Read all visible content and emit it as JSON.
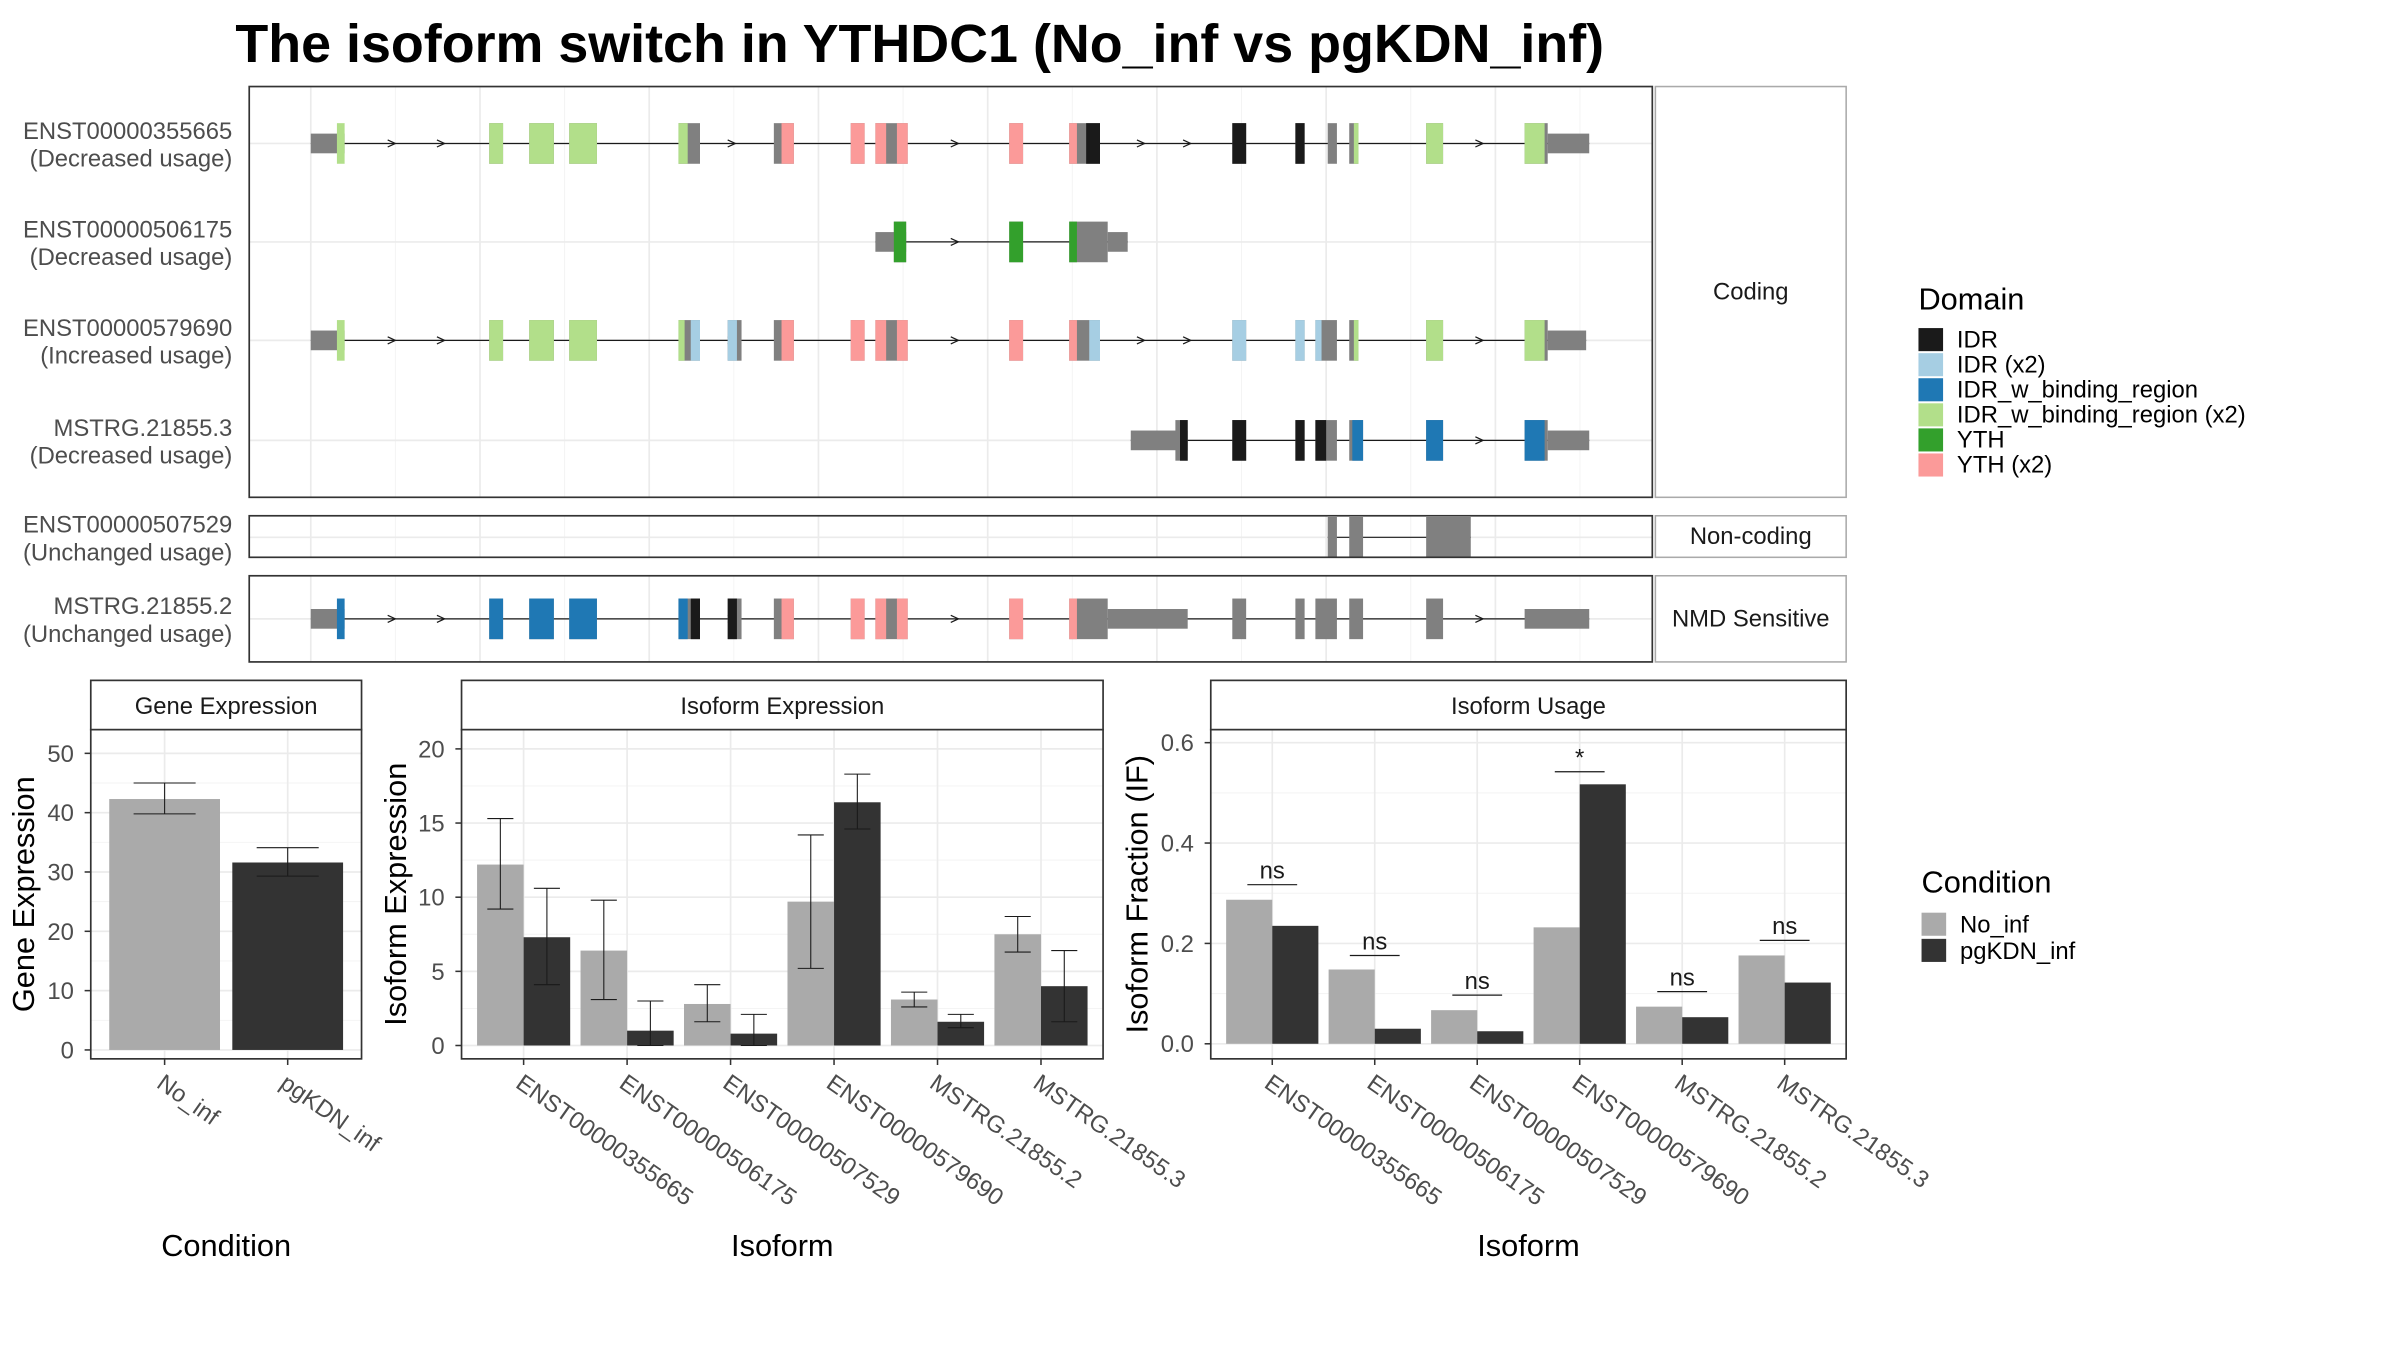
{
  "title": "The isoform switch in YTHDC1 (No_inf vs pgKDN_inf)",
  "colors": {
    "exon": "#808080",
    "panel_border": "#333333",
    "strip_border": "#aaaaaa",
    "grid": "#ebebeb",
    "No_inf": "#aaaaaa",
    "pgKDN_inf": "#333333",
    "IDR": "#1a1a1a",
    "IDR (x2)": "#a6cee3",
    "IDR_w_binding_region": "#1f78b4",
    "IDR_w_binding_region (x2)": "#b2df8a",
    "YTH": "#33a02c",
    "YTH (x2)": "#fb9a99"
  },
  "structure": {
    "facets": [
      {
        "label": "Coding",
        "tracks": [
          0,
          1,
          2,
          3
        ]
      },
      {
        "label": "Non-coding",
        "tracks": [
          4
        ]
      },
      {
        "label": "NMD Sensitive",
        "tracks": [
          5
        ]
      }
    ],
    "tracks": [
      {
        "name": "ENST00000355665",
        "usage": "(Decreased usage)",
        "line": [
          202,
          1033
        ],
        "exons": [
          [
            202,
            224,
            0.8
          ],
          [
            318,
            327,
            1.65
          ],
          [
            344,
            360,
            1.65
          ],
          [
            370,
            388,
            1.65
          ],
          [
            441,
            455,
            1.65
          ],
          [
            503,
            516,
            1.65
          ],
          [
            553,
            562,
            1.65
          ],
          [
            569,
            590,
            1.65
          ],
          [
            656,
            665,
            1.65
          ],
          [
            695,
            715,
            1.65
          ],
          [
            801,
            810,
            1.65
          ],
          [
            842,
            848,
            1.65
          ],
          [
            863,
            869,
            1.65
          ],
          [
            877,
            883,
            1.65
          ],
          [
            927,
            938,
            1.65
          ],
          [
            991,
            1006,
            1.65
          ],
          [
            1006,
            1033,
            0.8
          ]
        ],
        "domains": [
          [
            219,
            224,
            "IDR_w_binding_region (x2)"
          ],
          [
            318,
            327,
            "IDR_w_binding_region (x2)"
          ],
          [
            344,
            360,
            "IDR_w_binding_region (x2)"
          ],
          [
            370,
            388,
            "IDR_w_binding_region (x2)"
          ],
          [
            441,
            447,
            "IDR_w_binding_region (x2)"
          ],
          [
            508,
            516,
            "YTH (x2)"
          ],
          [
            553,
            562,
            "YTH (x2)"
          ],
          [
            569,
            576,
            "YTH (x2)"
          ],
          [
            583,
            590,
            "YTH (x2)"
          ],
          [
            656,
            665,
            "YTH (x2)"
          ],
          [
            695,
            700,
            "YTH (x2)"
          ],
          [
            706,
            715,
            "IDR"
          ],
          [
            801,
            810,
            "IDR"
          ],
          [
            842,
            848,
            "IDR"
          ],
          [
            880,
            883,
            "IDR_w_binding_region (x2)"
          ],
          [
            927,
            938,
            "IDR_w_binding_region (x2)"
          ],
          [
            991,
            1004,
            "IDR_w_binding_region (x2)"
          ]
        ],
        "arrows": [
          255,
          287,
          324,
          476,
          621,
          742,
          772,
          962
        ]
      },
      {
        "name": "ENST00000506175",
        "usage": "(Decreased usage)",
        "line": [
          569,
          733
        ],
        "exons": [
          [
            569,
            589,
            0.8
          ],
          [
            581,
            589,
            1.65
          ],
          [
            656,
            665,
            1.65
          ],
          [
            695,
            720,
            1.65
          ],
          [
            720,
            733,
            0.8
          ]
        ],
        "domains": [
          [
            581,
            589,
            "YTH"
          ],
          [
            656,
            665,
            "YTH"
          ],
          [
            695,
            700,
            "YTH"
          ]
        ],
        "arrows": [
          621
        ]
      },
      {
        "name": "ENST00000579690",
        "usage": "(Increased usage)",
        "line": [
          202,
          1031
        ],
        "exons": [
          [
            202,
            224,
            0.8
          ],
          [
            318,
            327,
            1.65
          ],
          [
            344,
            360,
            1.65
          ],
          [
            370,
            388,
            1.65
          ],
          [
            441,
            455,
            1.65
          ],
          [
            473,
            482,
            1.65
          ],
          [
            503,
            516,
            1.65
          ],
          [
            553,
            562,
            1.65
          ],
          [
            569,
            590,
            1.65
          ],
          [
            656,
            665,
            1.65
          ],
          [
            695,
            715,
            1.65
          ],
          [
            801,
            810,
            1.65
          ],
          [
            842,
            848,
            1.65
          ],
          [
            855,
            869,
            1.65
          ],
          [
            877,
            883,
            1.65
          ],
          [
            927,
            938,
            1.65
          ],
          [
            991,
            1006,
            1.65
          ],
          [
            1006,
            1031,
            0.8
          ]
        ],
        "domains": [
          [
            219,
            224,
            "IDR_w_binding_region (x2)"
          ],
          [
            318,
            327,
            "IDR_w_binding_region (x2)"
          ],
          [
            344,
            360,
            "IDR_w_binding_region (x2)"
          ],
          [
            370,
            388,
            "IDR_w_binding_region (x2)"
          ],
          [
            441,
            445,
            "IDR_w_binding_region (x2)"
          ],
          [
            449,
            455,
            "IDR (x2)"
          ],
          [
            473,
            479,
            "IDR (x2)"
          ],
          [
            508,
            516,
            "YTH (x2)"
          ],
          [
            553,
            562,
            "YTH (x2)"
          ],
          [
            569,
            576,
            "YTH (x2)"
          ],
          [
            583,
            590,
            "YTH (x2)"
          ],
          [
            656,
            665,
            "YTH (x2)"
          ],
          [
            695,
            700,
            "YTH (x2)"
          ],
          [
            708,
            715,
            "IDR (x2)"
          ],
          [
            801,
            810,
            "IDR (x2)"
          ],
          [
            842,
            848,
            "IDR (x2)"
          ],
          [
            855,
            859,
            "IDR (x2)"
          ],
          [
            880,
            883,
            "IDR_w_binding_region (x2)"
          ],
          [
            927,
            938,
            "IDR_w_binding_region (x2)"
          ],
          [
            991,
            1004,
            "IDR_w_binding_region (x2)"
          ]
        ],
        "arrows": [
          255,
          287,
          324,
          476,
          621,
          742,
          772,
          962
        ]
      },
      {
        "name": "MSTRG.21855.3",
        "usage": "(Decreased usage)",
        "line": [
          735,
          1033
        ],
        "exons": [
          [
            735,
            772,
            0.8
          ],
          [
            764,
            772,
            1.65
          ],
          [
            801,
            810,
            1.65
          ],
          [
            842,
            848,
            1.65
          ],
          [
            855,
            869,
            1.65
          ],
          [
            877,
            886,
            1.65
          ],
          [
            927,
            938,
            1.65
          ],
          [
            991,
            1006,
            1.65
          ],
          [
            1006,
            1033,
            0.8
          ]
        ],
        "domains": [
          [
            767,
            772,
            "IDR"
          ],
          [
            801,
            810,
            "IDR"
          ],
          [
            842,
            848,
            "IDR"
          ],
          [
            855,
            862,
            "IDR"
          ],
          [
            879,
            886,
            "IDR_w_binding_region"
          ],
          [
            927,
            938,
            "IDR_w_binding_region"
          ],
          [
            991,
            1004,
            "IDR_w_binding_region"
          ]
        ],
        "arrows": [
          962
        ]
      },
      {
        "name": "ENST00000507529",
        "usage": "(Unchanged usage)",
        "line": [
          863,
          956
        ],
        "exons": [
          [
            863,
            869,
            1.65
          ],
          [
            877,
            886,
            1.65
          ],
          [
            927,
            956,
            1.65
          ]
        ],
        "domains": [],
        "arrows": []
      },
      {
        "name": "MSTRG.21855.2",
        "usage": "(Unchanged usage)",
        "line": [
          202,
          1033
        ],
        "exons": [
          [
            202,
            224,
            0.8
          ],
          [
            318,
            327,
            1.65
          ],
          [
            344,
            360,
            1.65
          ],
          [
            370,
            388,
            1.65
          ],
          [
            441,
            455,
            1.65
          ],
          [
            473,
            482,
            1.65
          ],
          [
            503,
            516,
            1.65
          ],
          [
            553,
            562,
            1.65
          ],
          [
            569,
            590,
            1.65
          ],
          [
            656,
            665,
            1.65
          ],
          [
            695,
            720,
            1.65
          ],
          [
            720,
            772,
            0.8
          ],
          [
            801,
            810,
            1.65
          ],
          [
            842,
            848,
            1.65
          ],
          [
            855,
            869,
            1.65
          ],
          [
            877,
            886,
            1.65
          ],
          [
            927,
            938,
            1.65
          ],
          [
            991,
            1033,
            0.8
          ]
        ],
        "domains": [
          [
            219,
            224,
            "IDR_w_binding_region"
          ],
          [
            318,
            327,
            "IDR_w_binding_region"
          ],
          [
            344,
            360,
            "IDR_w_binding_region"
          ],
          [
            370,
            388,
            "IDR_w_binding_region"
          ],
          [
            441,
            447,
            "IDR_w_binding_region"
          ],
          [
            449,
            455,
            "IDR"
          ],
          [
            473,
            479,
            "IDR"
          ],
          [
            508,
            516,
            "YTH (x2)"
          ],
          [
            553,
            562,
            "YTH (x2)"
          ],
          [
            569,
            576,
            "YTH (x2)"
          ],
          [
            583,
            590,
            "YTH (x2)"
          ],
          [
            656,
            665,
            "YTH (x2)"
          ],
          [
            695,
            700,
            "YTH (x2)"
          ]
        ],
        "arrows": [
          255,
          287,
          476,
          621,
          962
        ]
      }
    ]
  },
  "legends": {
    "domain": {
      "title": "Domain",
      "items": [
        "IDR",
        "IDR (x2)",
        "IDR_w_binding_region",
        "IDR_w_binding_region (x2)",
        "YTH",
        "YTH (x2)"
      ]
    },
    "condition": {
      "title": "Condition",
      "items": [
        "No_inf",
        "pgKDN_inf"
      ]
    }
  },
  "chart_data": [
    {
      "type": "bar",
      "title": "Gene Expression",
      "xlabel": "Condition",
      "ylabel": "Gene Expression",
      "ylim": [
        -1.5,
        54
      ],
      "yticks": [
        0,
        10,
        20,
        30,
        40,
        50
      ],
      "categories": [
        "No_inf",
        "pgKDN_inf"
      ],
      "series": [
        {
          "name": "No_inf",
          "values": [
            42.3,
            null
          ],
          "errors": [
            [
              39.8,
              45.0
            ],
            null
          ]
        },
        {
          "name": "pgKDN_inf",
          "values": [
            null,
            31.6
          ],
          "errors": [
            null,
            [
              29.3,
              34.1
            ]
          ]
        }
      ]
    },
    {
      "type": "bar",
      "title": "Isoform Expression",
      "xlabel": "Isoform",
      "ylabel": "Isoform Expression",
      "ylim": [
        -0.9,
        21.3
      ],
      "yticks": [
        0,
        5,
        10,
        15,
        20
      ],
      "categories": [
        "ENST00000355665",
        "ENST00000506175",
        "ENST00000507529",
        "ENST00000579690",
        "MSTRG.21855.2",
        "MSTRG.21855.3"
      ],
      "series": [
        {
          "name": "No_inf",
          "values": [
            12.2,
            6.4,
            2.8,
            9.7,
            3.1,
            7.5
          ],
          "errors": [
            [
              9.2,
              15.3
            ],
            [
              3.1,
              9.8
            ],
            [
              1.6,
              4.1
            ],
            [
              5.2,
              14.2
            ],
            [
              2.6,
              3.6
            ],
            [
              6.3,
              8.7
            ]
          ]
        },
        {
          "name": "pgKDN_inf",
          "values": [
            7.3,
            1.0,
            0.8,
            16.4,
            1.6,
            4.0
          ],
          "errors": [
            [
              4.1,
              10.6
            ],
            [
              0.0,
              3.0
            ],
            [
              0.0,
              2.1
            ],
            [
              14.6,
              18.3
            ],
            [
              1.2,
              2.1
            ],
            [
              1.6,
              6.4
            ]
          ]
        }
      ]
    },
    {
      "type": "bar",
      "title": "Isoform Usage",
      "xlabel": "Isoform",
      "ylabel": "Isoform Fraction (IF)",
      "ylim": [
        -0.03,
        0.626
      ],
      "yticks": [
        0.0,
        0.2,
        0.4,
        0.6
      ],
      "yticklabels": [
        "0.0",
        "0.2",
        "0.4",
        "0.6"
      ],
      "categories": [
        "ENST00000355665",
        "ENST00000506175",
        "ENST00000507529",
        "ENST00000579690",
        "MSTRG.21855.2",
        "MSTRG.21855.3"
      ],
      "series": [
        {
          "name": "No_inf",
          "values": [
            0.287,
            0.148,
            0.067,
            0.232,
            0.074,
            0.176
          ]
        },
        {
          "name": "pgKDN_inf",
          "values": [
            0.235,
            0.03,
            0.025,
            0.517,
            0.053,
            0.122
          ]
        }
      ],
      "significance": [
        {
          "label": "ns",
          "y": 0.317
        },
        {
          "label": "ns",
          "y": 0.176
        },
        {
          "label": "ns",
          "y": 0.097
        },
        {
          "label": "*",
          "y": 0.542
        },
        {
          "label": "ns",
          "y": 0.104
        },
        {
          "label": "ns",
          "y": 0.206
        }
      ]
    }
  ]
}
